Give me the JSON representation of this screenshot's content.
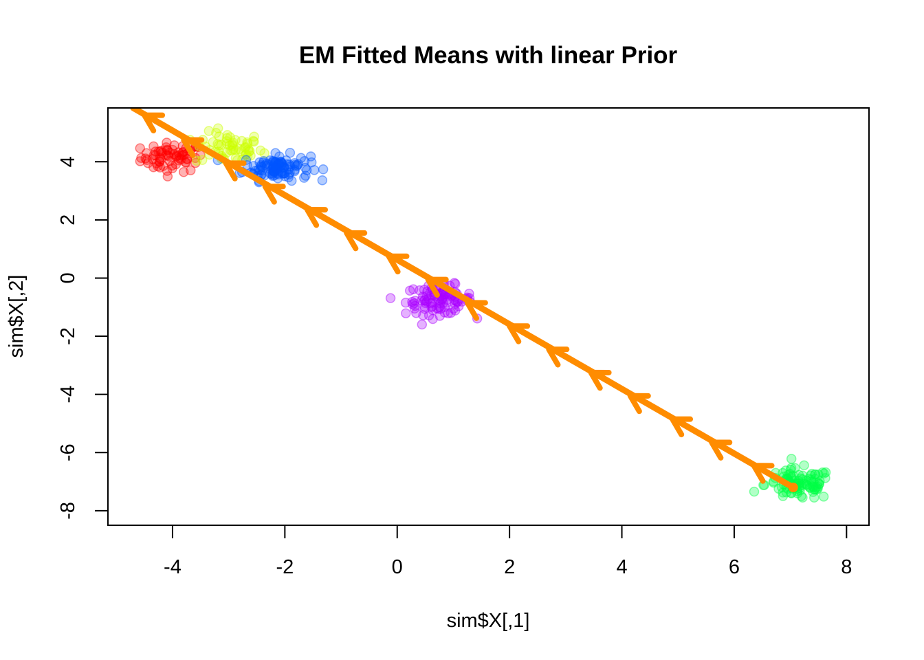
{
  "chart_data": {
    "type": "scatter",
    "title": "EM Fitted Means with linear Prior",
    "xlabel": "sim$X[,1]",
    "ylabel": "sim$X[,2]",
    "xlim": [
      -5.15,
      8.4
    ],
    "ylim": [
      -8.5,
      5.85
    ],
    "x_ticks": [
      -4,
      -2,
      0,
      2,
      4,
      6,
      8
    ],
    "y_ticks": [
      -8,
      -6,
      -4,
      -2,
      0,
      2,
      4
    ],
    "grid": false,
    "clusters": [
      {
        "color": "#ff0000",
        "center": [
          -4.0,
          4.15
        ],
        "spread": [
          0.28,
          0.25
        ],
        "n": 70
      },
      {
        "color": "#ccff00",
        "center": [
          -3.0,
          4.45
        ],
        "spread": [
          0.3,
          0.28
        ],
        "n": 60
      },
      {
        "color": "#0055ff",
        "center": [
          -2.15,
          3.8
        ],
        "spread": [
          0.3,
          0.22
        ],
        "n": 110
      },
      {
        "color": "#aa00ff",
        "center": [
          0.75,
          -0.75
        ],
        "spread": [
          0.3,
          0.25
        ],
        "n": 100
      },
      {
        "color": "#00ff44",
        "center": [
          7.15,
          -7.1
        ],
        "spread": [
          0.3,
          0.27
        ],
        "n": 100
      }
    ],
    "fitted_means_path": {
      "color": "#ff8c00",
      "start": [
        7.05,
        -7.2
      ],
      "end": [
        -4.7,
        5.85
      ],
      "arrow_points": [
        [
          6.35,
          -6.45
        ],
        [
          5.6,
          -5.65
        ],
        [
          4.9,
          -4.85
        ],
        [
          4.15,
          -4.05
        ],
        [
          3.45,
          -3.25
        ],
        [
          2.7,
          -2.45
        ],
        [
          2.0,
          -1.65
        ],
        [
          1.25,
          -0.85
        ],
        [
          0.55,
          -0.05
        ],
        [
          -0.15,
          0.75
        ],
        [
          -0.9,
          1.55
        ],
        [
          -1.6,
          2.35
        ],
        [
          -2.35,
          3.15
        ],
        [
          -3.05,
          3.95
        ],
        [
          -3.8,
          4.75
        ],
        [
          -4.5,
          5.6
        ]
      ]
    }
  }
}
